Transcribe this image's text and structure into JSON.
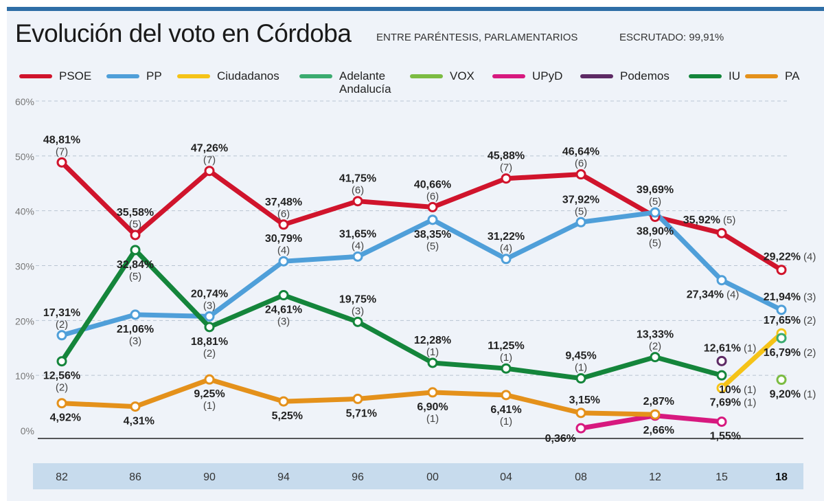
{
  "header": {
    "title": "Evolución del voto en Córdoba",
    "subtitle": "ENTRE PARÉNTESIS, PARLAMENTARIOS",
    "escrutado": "ESCRUTADO: 99,91%"
  },
  "chart_data": {
    "type": "line",
    "title": "Evolución del voto en Córdoba",
    "categories": [
      "82",
      "86",
      "90",
      "94",
      "96",
      "00",
      "04",
      "08",
      "12",
      "15",
      "18"
    ],
    "ylim": [
      0,
      60
    ],
    "yticks": [
      "0%",
      "10%",
      "20%",
      "30%",
      "40%",
      "50%",
      "60%"
    ],
    "grid": true,
    "legend": "top",
    "series": [
      {
        "name": "PSOE",
        "color": "#d0142c",
        "values": [
          48.81,
          35.58,
          47.26,
          37.48,
          41.75,
          40.66,
          45.88,
          46.64,
          38.9,
          35.92,
          29.22
        ],
        "labels": [
          "48,81%",
          "35,58%",
          "47,26%",
          "37,48%",
          "41,75%",
          "40,66%",
          "45,88%",
          "46,64%",
          "38,90%",
          "35,92%",
          "29,22%"
        ],
        "seats": [
          "(7)",
          "(5)",
          "(7)",
          "(6)",
          "(6)",
          "(6)",
          "(7)",
          "(6)",
          "(5)",
          "(5)",
          "(4)"
        ]
      },
      {
        "name": "PP",
        "color": "#4f9fd9",
        "values": [
          17.31,
          21.06,
          20.74,
          30.79,
          31.65,
          38.35,
          31.22,
          37.92,
          39.69,
          27.34,
          21.94
        ],
        "labels": [
          "17,31%",
          "21,06%",
          "20,74%",
          "30,79%",
          "31,65%",
          "38,35%",
          "31,22%",
          "37,92%",
          "39,69%",
          "27,34%",
          "21,94%"
        ],
        "seats": [
          "(2)",
          "(3)",
          "(3)",
          "(4)",
          "(4)",
          "(5)",
          "(4)",
          "(5)",
          "(5)",
          "(4)",
          "(3)"
        ]
      },
      {
        "name": "Ciudadanos",
        "color": "#f5c318",
        "values": [
          null,
          null,
          null,
          null,
          null,
          null,
          null,
          null,
          null,
          7.69,
          17.65
        ],
        "labels": [
          null,
          null,
          null,
          null,
          null,
          null,
          null,
          null,
          null,
          "7,69%",
          "17,65%"
        ],
        "seats": [
          null,
          null,
          null,
          null,
          null,
          null,
          null,
          null,
          null,
          "(1)",
          "(2)"
        ]
      },
      {
        "name": "Adelante Andalucía",
        "color": "#3bab70",
        "values": [
          null,
          null,
          null,
          null,
          null,
          null,
          null,
          null,
          null,
          null,
          16.79
        ],
        "labels": [
          null,
          null,
          null,
          null,
          null,
          null,
          null,
          null,
          null,
          null,
          "16,79%"
        ],
        "seats": [
          null,
          null,
          null,
          null,
          null,
          null,
          null,
          null,
          null,
          null,
          "(2)"
        ]
      },
      {
        "name": "VOX",
        "color": "#7cbc43",
        "values": [
          null,
          null,
          null,
          null,
          null,
          null,
          null,
          null,
          null,
          null,
          9.2
        ],
        "labels": [
          null,
          null,
          null,
          null,
          null,
          null,
          null,
          null,
          null,
          null,
          "9,20%"
        ],
        "seats": [
          null,
          null,
          null,
          null,
          null,
          null,
          null,
          null,
          null,
          null,
          "(1)"
        ]
      },
      {
        "name": "UPyD",
        "color": "#d7197f",
        "values": [
          null,
          null,
          null,
          null,
          null,
          null,
          null,
          0.36,
          2.66,
          1.55,
          null
        ],
        "labels": [
          null,
          null,
          null,
          null,
          null,
          null,
          null,
          "0,36%",
          "2,66%",
          "1,55%",
          null
        ],
        "seats": [
          null,
          null,
          null,
          null,
          null,
          null,
          null,
          "",
          "",
          "",
          null
        ]
      },
      {
        "name": "Podemos",
        "color": "#5d2a65",
        "values": [
          null,
          null,
          null,
          null,
          null,
          null,
          null,
          null,
          null,
          12.61,
          null
        ],
        "labels": [
          null,
          null,
          null,
          null,
          null,
          null,
          null,
          null,
          null,
          "12,61%",
          null
        ],
        "seats": [
          null,
          null,
          null,
          null,
          null,
          null,
          null,
          null,
          null,
          "(1)",
          null
        ]
      },
      {
        "name": "IU",
        "color": "#14853b",
        "values": [
          12.56,
          32.84,
          18.81,
          24.61,
          19.75,
          12.28,
          11.25,
          9.45,
          13.33,
          10,
          null
        ],
        "labels": [
          "12,56%",
          "32,84%",
          "18,81%",
          "24,61%",
          "19,75%",
          "12,28%",
          "11,25%",
          "9,45%",
          "13,33%",
          "10%",
          null
        ],
        "seats": [
          "(2)",
          "(5)",
          "(2)",
          "(3)",
          "(3)",
          "(1)",
          "(1)",
          "(1)",
          "(2)",
          "(1)",
          null
        ]
      },
      {
        "name": "PA",
        "color": "#e4911b",
        "values": [
          4.92,
          4.31,
          9.25,
          5.25,
          5.71,
          6.9,
          6.41,
          3.15,
          2.87,
          null,
          null
        ],
        "labels": [
          "4,92%",
          "4,31%",
          "9,25%",
          "5,25%",
          "5,71%",
          "6,90%",
          "6,41%",
          "3,15%",
          "2,87%",
          null,
          null
        ],
        "seats": [
          "",
          "",
          "(1)",
          "",
          "",
          "(1)",
          "(1)",
          "",
          "",
          null,
          null
        ]
      }
    ]
  }
}
